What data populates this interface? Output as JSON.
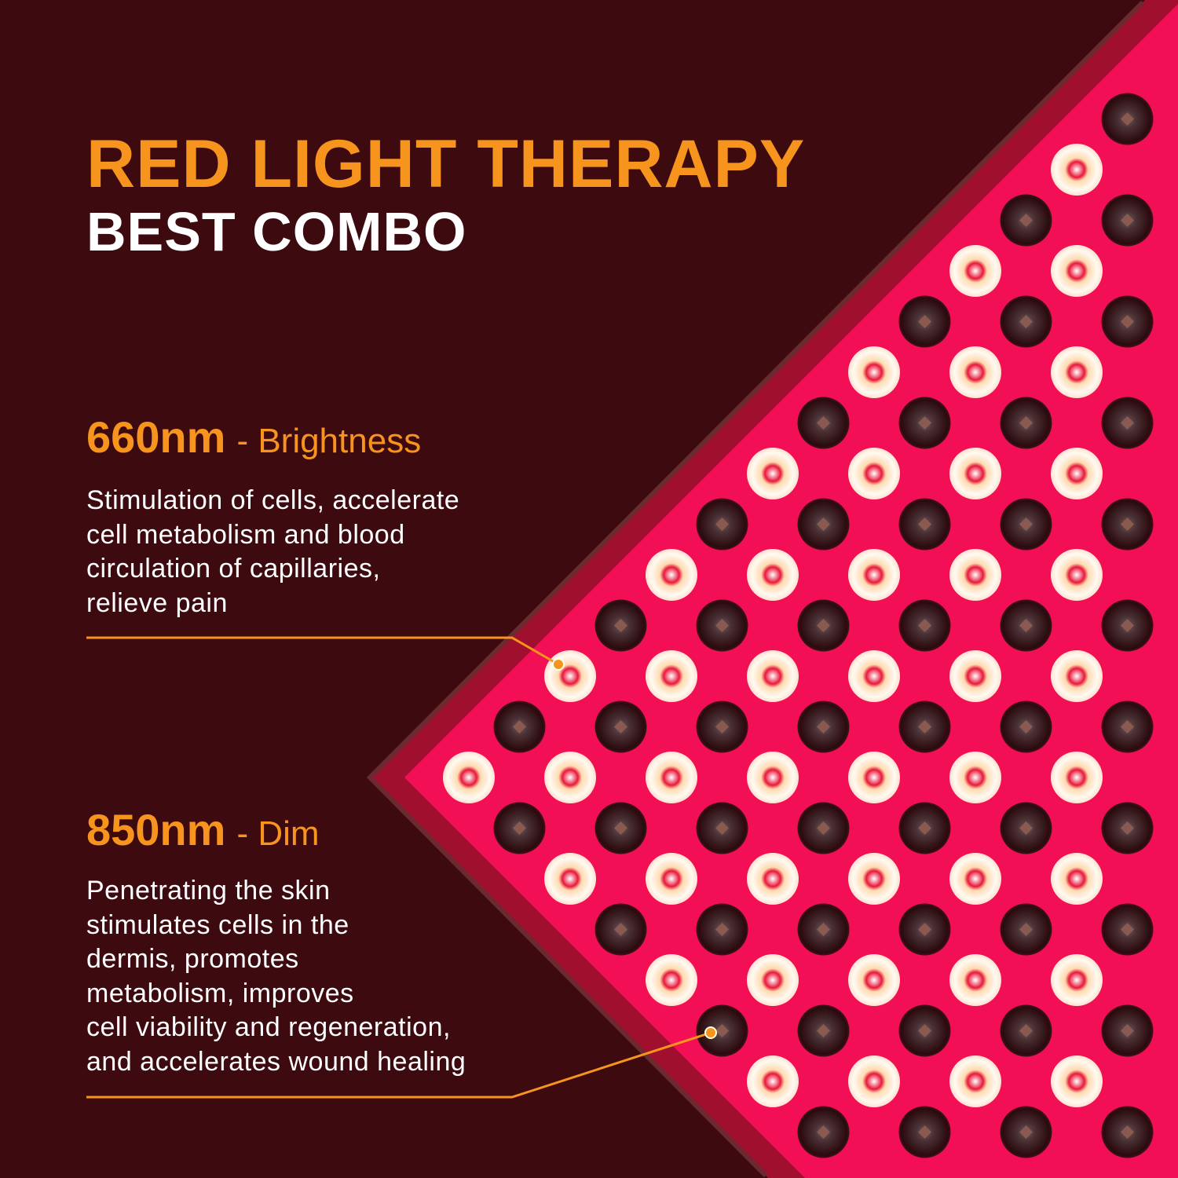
{
  "title": "RED LIGHT THERAPY",
  "subtitle": "BEST COMBO",
  "features": [
    {
      "wavelength": "660nm",
      "label": "- Brightness",
      "description": "Stimulation of cells, accelerate\ncell metabolism and blood\ncirculation of capillaries,\nrelieve pain",
      "led_type": "bright"
    },
    {
      "wavelength": "850nm",
      "label": "- Dim",
      "description": "Penetrating the skin\nstimulates cells in the\ndermis, promotes\nmetabolism, improves\ncell viability and regeneration,\nand accelerates wound healing",
      "led_type": "dim"
    }
  ],
  "colors": {
    "background": "#3d0a10",
    "accent": "#f7941d",
    "panel": "#f20f55",
    "panel_frame": "#a0102e",
    "led_bright": "#fff6ea",
    "led_dim": "#2a0a0e"
  }
}
